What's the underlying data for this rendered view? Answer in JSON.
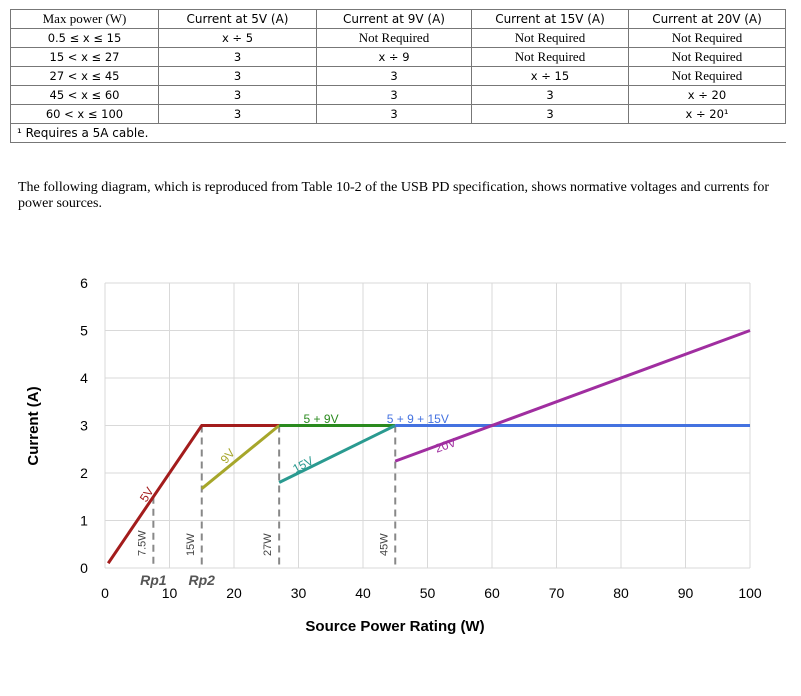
{
  "table": {
    "headers": [
      "Max power (W)",
      "Current at 5V (A)",
      "Current at 9V (A)",
      "Current at 15V (A)",
      "Current at 20V (A)"
    ],
    "rows": [
      [
        "0.5 ≤ x ≤ 15",
        "x ÷ 5",
        "Not Required",
        "Not Required",
        "Not Required"
      ],
      [
        "15 < x ≤ 27",
        "3",
        "x ÷ 9",
        "Not Required",
        "Not Required"
      ],
      [
        "27 < x ≤ 45",
        "3",
        "3",
        "x ÷ 15",
        "Not Required"
      ],
      [
        "45 < x ≤ 60",
        "3",
        "3",
        "3",
        "x ÷ 20"
      ],
      [
        "60 < x ≤ 100",
        "3",
        "3",
        "3",
        "x ÷ 20¹"
      ]
    ],
    "footnote": "¹ Requires a 5A cable."
  },
  "paragraph": "The following diagram, which is reproduced from Table 10-2 of the USB PD specification, shows normative voltages and currents for power sources.",
  "chart_data": {
    "type": "line",
    "xlabel": "Source Power Rating (W)",
    "ylabel": "Current (A)",
    "xlim": [
      0,
      100
    ],
    "ylim": [
      0,
      6
    ],
    "x_ticks": [
      0,
      10,
      20,
      30,
      40,
      50,
      60,
      70,
      80,
      90,
      100
    ],
    "y_ticks": [
      0,
      1,
      2,
      3,
      4,
      5,
      6
    ],
    "grid": true,
    "series": [
      {
        "label": "5V",
        "color": "#a31c1c",
        "points": [
          [
            0.5,
            0.1
          ],
          [
            15,
            3
          ],
          [
            27,
            3
          ]
        ]
      },
      {
        "label": "9V",
        "color": "#a6a62a",
        "points": [
          [
            15,
            1.67
          ],
          [
            27,
            3
          ]
        ]
      },
      {
        "label": "5 + 9V",
        "color": "#2a8a1e",
        "points": [
          [
            27,
            3
          ],
          [
            45,
            3
          ]
        ]
      },
      {
        "label": "15V",
        "color": "#2a9a90",
        "points": [
          [
            27,
            1.8
          ],
          [
            45,
            3
          ]
        ]
      },
      {
        "label": "5 + 9 + 15V",
        "color": "#4472e0",
        "points": [
          [
            45,
            3
          ],
          [
            100,
            3
          ]
        ]
      },
      {
        "label": "20V",
        "color": "#a02ea0",
        "points": [
          [
            45,
            2.25
          ],
          [
            100,
            5
          ]
        ]
      }
    ],
    "power_markers": [
      {
        "x": 7.5,
        "y_top": 1.5,
        "label": "7.5W"
      },
      {
        "x": 15,
        "y_top": 3,
        "label": "15W"
      },
      {
        "x": 27,
        "y_top": 3,
        "label": "27W"
      },
      {
        "x": 45,
        "y_top": 3,
        "label": "45W"
      }
    ],
    "annotations": [
      "Rp1",
      "Rp2"
    ]
  }
}
